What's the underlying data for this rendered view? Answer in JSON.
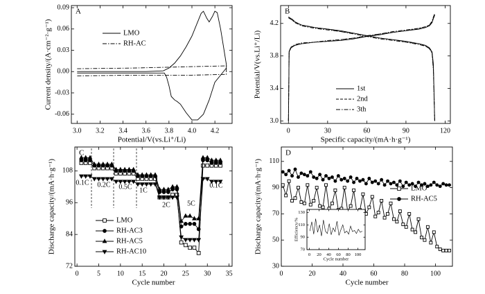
{
  "chart_data": [
    {
      "type": "line",
      "label": "A",
      "xlabel": "Potential/V(vs.Li⁺/Li)",
      "ylabel": "Current density/(A·cm⁻²·g⁻¹)",
      "xlim": [
        2.95,
        4.35
      ],
      "ylim": [
        -0.073,
        0.093
      ],
      "xticks": [
        {
          "value": 3,
          "label": "3.0"
        },
        3.2,
        3.4,
        3.6,
        3.8,
        {
          "value": 4,
          "label": "4.0"
        },
        4.2
      ],
      "yticks": [
        -0.06,
        -0.03,
        {
          "value": 0,
          "label": "0.00"
        },
        0.03,
        0.06,
        0.09
      ],
      "legend": "upper left",
      "series": [
        {
          "name": "LMO",
          "color": "#000000",
          "style": "solid",
          "x": [
            3.0,
            3.2,
            3.4,
            3.6,
            3.75,
            3.8,
            3.85,
            3.9,
            3.95,
            4.0,
            4.05,
            4.08,
            4.1,
            4.13,
            4.15,
            4.18,
            4.2,
            4.22,
            4.25,
            4.28,
            4.3,
            4.3,
            4.25,
            4.2,
            4.15,
            4.1,
            4.05,
            4.0,
            3.95,
            3.9,
            3.87,
            3.85,
            3.82,
            3.8,
            3.78,
            3.76,
            3.6,
            3.4,
            3.2,
            3.0
          ],
          "values": [
            0,
            0,
            0,
            0,
            0.001,
            0.005,
            0.012,
            0.022,
            0.035,
            0.05,
            0.07,
            0.082,
            0.085,
            0.075,
            0.07,
            0.078,
            0.085,
            0.083,
            0.06,
            0.03,
            0.01,
            0.005,
            -0.005,
            -0.015,
            -0.04,
            -0.06,
            -0.068,
            -0.068,
            -0.058,
            -0.046,
            -0.042,
            -0.04,
            -0.035,
            -0.02,
            -0.008,
            -0.002,
            -0.002,
            -0.002,
            -0.002,
            -0.002
          ]
        },
        {
          "name": "RH-AC",
          "color": "#000000",
          "style": "dashdot",
          "x": [
            3.0,
            3.5,
            4.0,
            4.3,
            4.3,
            4.0,
            3.5,
            3.0
          ],
          "values": [
            0.004,
            0.005,
            0.007,
            0.008,
            -0.004,
            -0.005,
            -0.005,
            -0.006
          ]
        }
      ]
    },
    {
      "type": "line",
      "label": "B",
      "xlabel": "Specific capacity/(mA·h·g⁻¹)",
      "ylabel": "Potential/V(vs.Li⁺/Li)",
      "xlim": [
        -6,
        124
      ],
      "ylim": [
        2.97,
        4.42
      ],
      "xticks": [
        0,
        30,
        60,
        90,
        120
      ],
      "yticks": [
        {
          "value": 3,
          "label": "3.0"
        },
        3.4,
        3.8,
        4.2
      ],
      "legend": "lower right",
      "x": [
        0,
        0.5,
        2,
        5,
        10,
        20,
        30,
        40,
        50,
        60,
        70,
        80,
        90,
        100,
        105,
        108,
        110,
        111,
        112,
        null,
        0,
        1,
        3,
        5,
        10,
        20,
        30,
        40,
        50,
        60,
        70,
        80,
        90,
        100,
        105,
        108,
        110,
        111,
        112
      ],
      "series": [
        {
          "name": "1st",
          "color": "#000000",
          "style": "solid",
          "values": [
            3.0,
            3.85,
            3.9,
            3.93,
            3.95,
            3.97,
            3.98,
            3.99,
            4.01,
            4.04,
            4.06,
            4.09,
            4.11,
            4.13,
            4.15,
            4.17,
            4.21,
            4.26,
            4.3,
            null,
            4.28,
            4.27,
            4.25,
            4.22,
            4.18,
            4.15,
            4.13,
            4.11,
            4.08,
            4.05,
            4.02,
            4.0,
            3.98,
            3.95,
            3.93,
            3.9,
            3.85,
            3.7,
            3.0
          ]
        },
        {
          "name": "2nd",
          "color": "#000000",
          "style": "dashed",
          "values": [
            3.0,
            3.86,
            3.91,
            3.93,
            3.95,
            3.97,
            3.98,
            4.0,
            4.02,
            4.04,
            4.07,
            4.09,
            4.11,
            4.14,
            4.16,
            4.18,
            4.22,
            4.27,
            4.31,
            null,
            4.27,
            4.26,
            4.24,
            4.21,
            4.18,
            4.15,
            4.13,
            4.1,
            4.08,
            4.05,
            4.02,
            4.0,
            3.97,
            3.95,
            3.92,
            3.89,
            3.84,
            3.65,
            3.0
          ]
        },
        {
          "name": "3th",
          "color": "#000000",
          "style": "dashdot",
          "values": [
            3.0,
            3.86,
            3.91,
            3.94,
            3.96,
            3.97,
            3.99,
            4.0,
            4.02,
            4.05,
            4.07,
            4.1,
            4.12,
            4.14,
            4.16,
            4.18,
            4.23,
            4.28,
            4.32,
            null,
            4.27,
            4.26,
            4.24,
            4.21,
            4.17,
            4.14,
            4.12,
            4.1,
            4.07,
            4.04,
            4.01,
            3.99,
            3.97,
            3.94,
            3.92,
            3.89,
            3.83,
            3.62,
            3.0
          ]
        }
      ]
    },
    {
      "type": "line",
      "label": "C",
      "xlabel": "Cycle number",
      "ylabel": "Discharge capacity/(mA·h·g⁻¹)",
      "xlim": [
        -0.5,
        35.7
      ],
      "ylim": [
        72,
        117
      ],
      "xticks": [
        0,
        5,
        10,
        15,
        20,
        25,
        30,
        35
      ],
      "yticks": [
        72,
        84,
        96,
        108
      ],
      "legend": "lower left",
      "annotations": [
        "0.1C",
        "0.2C",
        "0.5C",
        "1C",
        "2C",
        "5C",
        "0.1C"
      ],
      "x": [
        1,
        2,
        3,
        4,
        5,
        6,
        7,
        8,
        9,
        10,
        11,
        12,
        13,
        14,
        15,
        16,
        17,
        18,
        19,
        20,
        21,
        22,
        23,
        24,
        25,
        26,
        27,
        28,
        29,
        30,
        31,
        32,
        33
      ],
      "series": [
        {
          "name": "LMO",
          "color": "#000000",
          "style": "solid",
          "marker": "square-open",
          "values": [
            111,
            111,
            111,
            109,
            109,
            109,
            109,
            109,
            107,
            107,
            107,
            107,
            107,
            105,
            105,
            105,
            105,
            105,
            98,
            98,
            98,
            99,
            99,
            81,
            80,
            79,
            79,
            77,
            110,
            110,
            110,
            110,
            110
          ]
        },
        {
          "name": "RH-AC3",
          "color": "#000000",
          "style": "solid",
          "marker": "circle",
          "values": [
            112,
            112,
            112,
            110,
            110,
            110,
            110,
            110,
            108,
            108,
            108,
            108,
            108,
            106,
            106,
            106,
            106,
            106,
            100,
            100,
            100,
            101,
            101,
            87,
            88,
            88,
            88,
            86,
            112,
            112,
            111,
            111,
            111
          ]
        },
        {
          "name": "RH-AC5",
          "color": "#000000",
          "style": "solid",
          "marker": "triangle",
          "values": [
            113,
            113,
            113,
            110.5,
            110.5,
            110.5,
            110.5,
            110.5,
            108.5,
            108.5,
            108.5,
            108.5,
            108.5,
            106.5,
            106.5,
            106.5,
            106.5,
            106.5,
            101,
            101,
            101,
            102,
            102,
            89,
            91,
            91,
            90,
            90,
            113,
            113,
            112,
            112,
            112
          ]
        },
        {
          "name": "RH-AC10",
          "color": "#000000",
          "style": "solid",
          "marker": "triangle-down",
          "values": [
            106,
            106,
            106,
            105,
            105,
            105,
            105,
            105,
            104,
            104,
            104,
            104,
            104,
            103,
            103,
            103,
            103,
            103,
            98,
            98,
            98,
            98,
            98,
            83,
            82,
            82,
            82,
            82,
            105,
            105,
            104,
            104,
            104
          ]
        }
      ]
    },
    {
      "type": "line",
      "label": "D",
      "xlabel": "Cycle number",
      "ylabel": "Discharge capacity/(mA·h·g⁻¹)",
      "xlim": [
        0,
        111
      ],
      "ylim": [
        30,
        121
      ],
      "xticks": [
        0,
        20,
        40,
        60,
        80,
        100
      ],
      "yticks": [
        30,
        50,
        70,
        90,
        110
      ],
      "legend": "center right",
      "x": [
        1,
        3,
        5,
        7,
        9,
        11,
        13,
        15,
        17,
        19,
        21,
        23,
        25,
        27,
        29,
        31,
        33,
        35,
        37,
        39,
        41,
        43,
        45,
        47,
        49,
        51,
        53,
        55,
        57,
        59,
        61,
        63,
        65,
        67,
        69,
        71,
        73,
        75,
        77,
        79,
        81,
        83,
        85,
        87,
        89,
        91,
        93,
        95,
        97,
        99,
        101,
        103,
        105,
        107,
        109
      ],
      "series": [
        {
          "name": "LMO",
          "color": "#000000",
          "style": "solid",
          "marker": "square-open",
          "values": [
            92,
            84,
            95,
            80,
            82,
            90,
            79,
            78,
            92,
            77,
            80,
            90,
            76,
            75,
            92,
            74,
            78,
            88,
            73,
            74,
            90,
            72,
            76,
            88,
            71,
            73,
            85,
            70,
            75,
            83,
            68,
            71,
            80,
            67,
            70,
            78,
            66,
            64,
            72,
            62,
            60,
            70,
            58,
            56,
            66,
            52,
            50,
            60,
            48,
            56,
            45,
            43,
            42,
            42,
            42
          ]
        },
        {
          "name": "RH-AC5",
          "color": "#000000",
          "style": "solid",
          "marker": "circle",
          "values": [
            102,
            100,
            103,
            99,
            104,
            98,
            101,
            100,
            99,
            102,
            98,
            97,
            100,
            96,
            99,
            97,
            98,
            95,
            99,
            96,
            97,
            95,
            98,
            94,
            97,
            95,
            96,
            93,
            97,
            94,
            95,
            93,
            96,
            92,
            95,
            93,
            94,
            92,
            95,
            91,
            94,
            92,
            93,
            91,
            94,
            92,
            93,
            91,
            92,
            94,
            92,
            91,
            93,
            92,
            92
          ]
        }
      ]
    },
    {
      "type": "line",
      "xlabel": "Cycle number",
      "ylabel": "Efficiency/%",
      "xlim": [
        -5,
        115
      ],
      "ylim": [
        70,
        135
      ],
      "xticks": [
        0,
        20,
        40,
        60,
        80,
        100
      ],
      "yticks": [
        70,
        90,
        110,
        130
      ],
      "x": [
        1,
        5,
        9,
        13,
        17,
        21,
        25,
        29,
        33,
        37,
        41,
        45,
        49,
        53,
        57,
        61,
        65,
        69,
        73,
        77,
        81,
        85,
        89,
        93,
        97,
        101,
        105,
        109
      ],
      "series": [
        {
          "color": "#000000",
          "style": "solid",
          "values": [
            100,
            115,
            95,
            120,
            98,
            110,
            92,
            118,
            100,
            96,
            112,
            94,
            105,
            99,
            116,
            93,
            102,
            110,
            97,
            100,
            95,
            108,
            99,
            101,
            96,
            103,
            98,
            100
          ]
        }
      ]
    }
  ]
}
